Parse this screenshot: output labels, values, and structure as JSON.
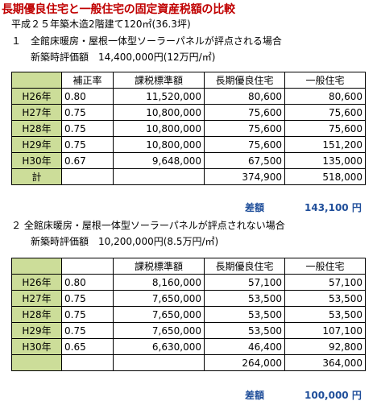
{
  "title": "長期優良住宅と一般住宅の固定資産税額の比較",
  "subtitle": "平成２５年築木造2階建て120㎡(36.3坪)",
  "section1": {
    "heading": "１　全館床暖房・屋根一体型ソーラーパネルが評点される場合",
    "valuation": "新築時評価額　14,400,000円(12万円/㎡)",
    "headers": [
      "",
      "補正率",
      "課税標準額",
      "長期優良住宅",
      "一般住宅"
    ],
    "rows": [
      {
        "year": "H26年",
        "rate": "0.80",
        "base": "11,520,000",
        "long": "80,600",
        "general": "80,600"
      },
      {
        "year": "H27年",
        "rate": "0.75",
        "base": "10,800,000",
        "long": "75,600",
        "general": "75,600"
      },
      {
        "year": "H28年",
        "rate": "0.75",
        "base": "10,800,000",
        "long": "75,600",
        "general": "75,600"
      },
      {
        "year": "H29年",
        "rate": "0.75",
        "base": "10,800,000",
        "long": "75,600",
        "general": "151,200"
      },
      {
        "year": "H30年",
        "rate": "0.67",
        "base": "9,648,000",
        "long": "67,500",
        "general": "135,000"
      }
    ],
    "total": {
      "label": "計",
      "long": "374,900",
      "general": "518,000"
    },
    "diff_label": "差額",
    "diff_value": "143,100 円"
  },
  "section2": {
    "heading": "２ 全館床暖房・屋根一体型ソーラーパネルが評点されない場合",
    "valuation": "新築時評価額　10,200,000円(8.5万円/㎡)",
    "headers": [
      "",
      "",
      "課税標準額",
      "長期優良住宅",
      "一般住宅"
    ],
    "rows": [
      {
        "year": "H26年",
        "rate": "0.80",
        "base": "8,160,000",
        "long": "57,100",
        "general": "57,100"
      },
      {
        "year": "H27年",
        "rate": "0.75",
        "base": "7,650,000",
        "long": "53,500",
        "general": "53,500"
      },
      {
        "year": "H28年",
        "rate": "0.75",
        "base": "7,650,000",
        "long": "53,500",
        "general": "53,500"
      },
      {
        "year": "H29年",
        "rate": "0.75",
        "base": "7,650,000",
        "long": "53,500",
        "general": "107,100"
      },
      {
        "year": "H30年",
        "rate": "0.65",
        "base": "6,630,000",
        "long": "46,400",
        "general": "92,800"
      }
    ],
    "total": {
      "label": "",
      "long": "264,000",
      "general": "364,000"
    },
    "diff_label": "差額",
    "diff_value": "100,000 円"
  }
}
